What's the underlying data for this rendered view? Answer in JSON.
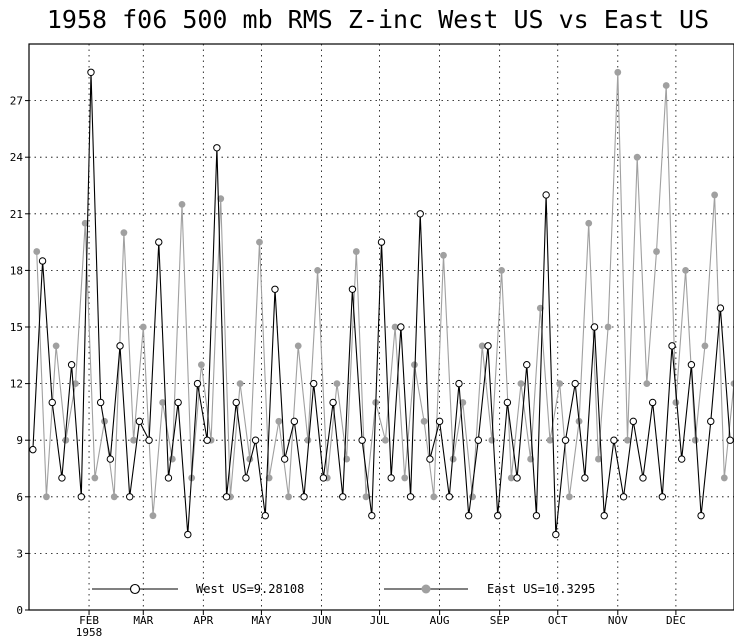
{
  "chart_data": {
    "type": "line",
    "title": "1958 f06 500 mb RMS Z-inc West US vs East US",
    "xlabel": "",
    "ylabel": "",
    "ylim": [
      0,
      30
    ],
    "yticks": [
      0,
      3,
      6,
      9,
      12,
      15,
      18,
      21,
      24,
      27
    ],
    "xlim": [
      "1958-01-01",
      "1958-12-31"
    ],
    "x_tick_labels": [
      {
        "label": "FEB",
        "sub": "1958",
        "date": "1958-02-01"
      },
      {
        "label": "MAR",
        "sub": "",
        "date": "1958-03-01"
      },
      {
        "label": "APR",
        "sub": "",
        "date": "1958-04-01"
      },
      {
        "label": "MAY",
        "sub": "",
        "date": "1958-05-01"
      },
      {
        "label": "JUN",
        "sub": "",
        "date": "1958-06-01"
      },
      {
        "label": "JUL",
        "sub": "",
        "date": "1958-07-01"
      },
      {
        "label": "AUG",
        "sub": "",
        "date": "1958-08-01"
      },
      {
        "label": "SEP",
        "sub": "",
        "date": "1958-09-01"
      },
      {
        "label": "OCT",
        "sub": "",
        "date": "1958-10-01"
      },
      {
        "label": "NOV",
        "sub": "",
        "date": "1958-11-01"
      },
      {
        "label": "DEC",
        "sub": "",
        "date": "1958-12-01"
      }
    ],
    "grid": true,
    "legend_position": "bottom",
    "series": [
      {
        "name": "West US=9.28108",
        "color": "#000000",
        "marker": "open-circle",
        "x": [
          "1958-01-03",
          "1958-01-08",
          "1958-01-13",
          "1958-01-18",
          "1958-01-23",
          "1958-01-28",
          "1958-02-02",
          "1958-02-07",
          "1958-02-12",
          "1958-02-17",
          "1958-02-22",
          "1958-02-27",
          "1958-03-04",
          "1958-03-09",
          "1958-03-14",
          "1958-03-19",
          "1958-03-24",
          "1958-03-29",
          "1958-04-03",
          "1958-04-08",
          "1958-04-13",
          "1958-04-18",
          "1958-04-23",
          "1958-04-28",
          "1958-05-03",
          "1958-05-08",
          "1958-05-13",
          "1958-05-18",
          "1958-05-23",
          "1958-05-28",
          "1958-06-02",
          "1958-06-07",
          "1958-06-12",
          "1958-06-17",
          "1958-06-22",
          "1958-06-27",
          "1958-07-02",
          "1958-07-07",
          "1958-07-12",
          "1958-07-17",
          "1958-07-22",
          "1958-07-27",
          "1958-08-01",
          "1958-08-06",
          "1958-08-11",
          "1958-08-16",
          "1958-08-21",
          "1958-08-26",
          "1958-08-31",
          "1958-09-05",
          "1958-09-10",
          "1958-09-15",
          "1958-09-20",
          "1958-09-25",
          "1958-09-30",
          "1958-10-05",
          "1958-10-10",
          "1958-10-15",
          "1958-10-20",
          "1958-10-25",
          "1958-10-30",
          "1958-11-04",
          "1958-11-09",
          "1958-11-14",
          "1958-11-19",
          "1958-11-24",
          "1958-11-29",
          "1958-12-04",
          "1958-12-09",
          "1958-12-14",
          "1958-12-19",
          "1958-12-24",
          "1958-12-29"
        ],
        "values": [
          8.5,
          18.5,
          11,
          7,
          13,
          6,
          28.5,
          11,
          8,
          14,
          6,
          10,
          9,
          19.5,
          7,
          11,
          4,
          12,
          9,
          24.5,
          6,
          11,
          7,
          9,
          5,
          17,
          8,
          10,
          6,
          12,
          7,
          11,
          6,
          17,
          9,
          5,
          19.5,
          7,
          15,
          6,
          21,
          8,
          10,
          6,
          12,
          5,
          9,
          14,
          5,
          11,
          7,
          13,
          5,
          22,
          4,
          9,
          12,
          7,
          15,
          5,
          9,
          6,
          10,
          7,
          11,
          6,
          14,
          8,
          13,
          5,
          10,
          16,
          9
        ]
      },
      {
        "name": "East US=10.3295",
        "color": "#a0a0a0",
        "marker": "filled-circle",
        "x": [
          "1958-01-05",
          "1958-01-10",
          "1958-01-15",
          "1958-01-20",
          "1958-01-25",
          "1958-01-30",
          "1958-02-04",
          "1958-02-09",
          "1958-02-14",
          "1958-02-19",
          "1958-02-24",
          "1958-03-01",
          "1958-03-06",
          "1958-03-11",
          "1958-03-16",
          "1958-03-21",
          "1958-03-26",
          "1958-03-31",
          "1958-04-05",
          "1958-04-10",
          "1958-04-15",
          "1958-04-20",
          "1958-04-25",
          "1958-04-30",
          "1958-05-05",
          "1958-05-10",
          "1958-05-15",
          "1958-05-20",
          "1958-05-25",
          "1958-05-30",
          "1958-06-04",
          "1958-06-09",
          "1958-06-14",
          "1958-06-19",
          "1958-06-24",
          "1958-06-29",
          "1958-07-04",
          "1958-07-09",
          "1958-07-14",
          "1958-07-19",
          "1958-07-24",
          "1958-07-29",
          "1958-08-03",
          "1958-08-08",
          "1958-08-13",
          "1958-08-18",
          "1958-08-23",
          "1958-08-28",
          "1958-09-02",
          "1958-09-07",
          "1958-09-12",
          "1958-09-17",
          "1958-09-22",
          "1958-09-27",
          "1958-10-02",
          "1958-10-07",
          "1958-10-12",
          "1958-10-17",
          "1958-10-22",
          "1958-10-27",
          "1958-11-01",
          "1958-11-06",
          "1958-11-11",
          "1958-11-16",
          "1958-11-21",
          "1958-11-26",
          "1958-12-01",
          "1958-12-06",
          "1958-12-11",
          "1958-12-16",
          "1958-12-21",
          "1958-12-26",
          "1958-12-31"
        ],
        "values": [
          19,
          6,
          14,
          9,
          12,
          20.5,
          7,
          10,
          6,
          20,
          9,
          15,
          5,
          11,
          8,
          21.5,
          7,
          13,
          9,
          21.8,
          6,
          12,
          8,
          19.5,
          7,
          10,
          6,
          14,
          9,
          18,
          7,
          12,
          8,
          19,
          6,
          11,
          9,
          15,
          7,
          13,
          10,
          6,
          18.8,
          8,
          11,
          6,
          14,
          9,
          18,
          7,
          12,
          8,
          16,
          9,
          12,
          6,
          10,
          20.5,
          8,
          15,
          28.5,
          9,
          24,
          12,
          19,
          27.8,
          11,
          18,
          9,
          14,
          22,
          7,
          12
        ]
      }
    ]
  }
}
